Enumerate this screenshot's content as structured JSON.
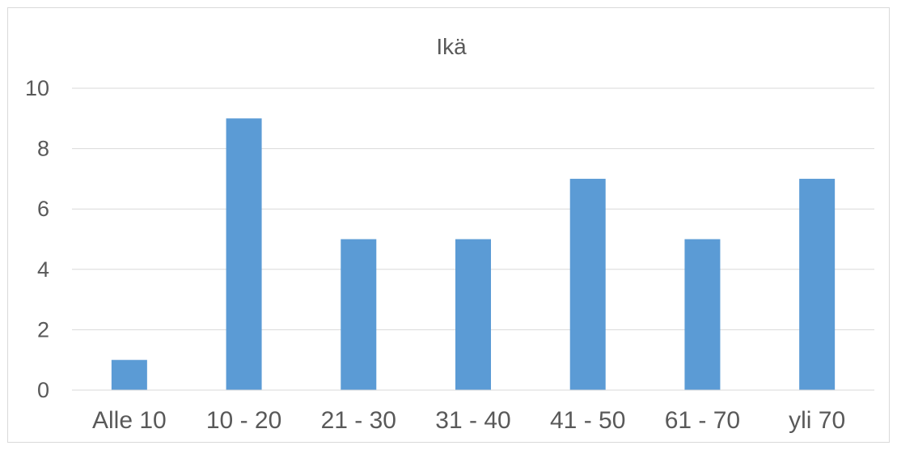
{
  "chart_data": {
    "type": "bar",
    "title": "Ikä",
    "xlabel": "",
    "ylabel": "",
    "categories": [
      "Alle 10",
      "10 - 20",
      "21 - 30",
      "31 - 40",
      "41 - 50",
      "61 - 70",
      "yli 70"
    ],
    "series": [
      {
        "values": [
          1,
          9,
          5,
          5,
          7,
          5,
          7
        ],
        "color": "#5b9bd5"
      }
    ],
    "ylim": [
      0,
      10
    ],
    "yticks": [
      "0",
      "2",
      "4",
      "6",
      "8",
      "10"
    ],
    "grid": true,
    "gridline_color": "#d9d9d9",
    "legend": "none"
  }
}
